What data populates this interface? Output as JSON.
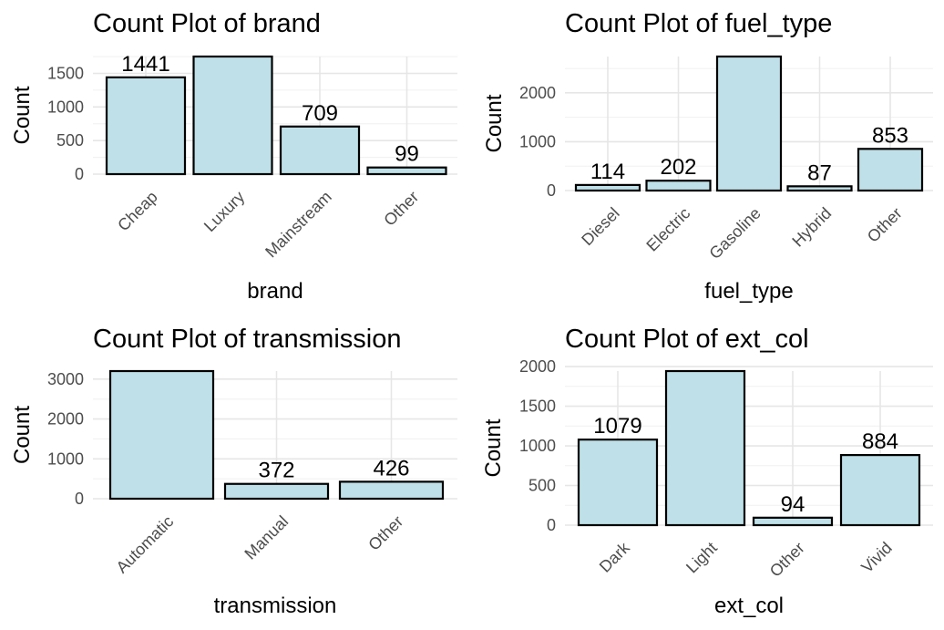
{
  "chart_data": [
    {
      "type": "bar",
      "title": "Count Plot of brand",
      "xlabel": "brand",
      "ylabel": "Count",
      "categories": [
        "Cheap",
        "Luxury",
        "Mainstream",
        "Other"
      ],
      "values": [
        1441,
        1751,
        709,
        99
      ],
      "data_labels": [
        "1441",
        "",
        "709",
        "99"
      ],
      "ylim": [
        0,
        1751
      ],
      "yticks": [
        0,
        500,
        1000,
        1500
      ],
      "ytick_labels": [
        "0",
        "500",
        "1000",
        "1500"
      ],
      "bar_color": "#bfe0e8",
      "grid": true
    },
    {
      "type": "bar",
      "title": "Count Plot of fuel_type",
      "xlabel": "fuel_type",
      "ylabel": "Count",
      "categories": [
        "Diesel",
        "Electric",
        "Gasoline",
        "Hybrid",
        "Other"
      ],
      "values": [
        114,
        202,
        2744,
        87,
        853
      ],
      "data_labels": [
        "114",
        "202",
        "",
        "87",
        "853"
      ],
      "ylim": [
        0,
        2744
      ],
      "yticks": [
        0,
        1000,
        2000
      ],
      "ytick_labels": [
        "0",
        "1000",
        "2000"
      ],
      "bar_color": "#bfe0e8",
      "grid": true
    },
    {
      "type": "bar",
      "title": "Count Plot of transmission",
      "xlabel": "transmission",
      "ylabel": "Count",
      "categories": [
        "Automatic",
        "Manual",
        "Other"
      ],
      "values": [
        3202,
        372,
        426
      ],
      "data_labels": [
        "",
        "372",
        "426"
      ],
      "ylim": [
        0,
        3202
      ],
      "yticks": [
        0,
        1000,
        2000,
        3000
      ],
      "ytick_labels": [
        "0",
        "1000",
        "2000",
        "3000"
      ],
      "bar_color": "#bfe0e8",
      "grid": true
    },
    {
      "type": "bar",
      "title": "Count Plot of ext_col",
      "xlabel": "ext_col",
      "ylabel": "Count",
      "categories": [
        "Dark",
        "Light",
        "Other",
        "Vivid"
      ],
      "values": [
        1079,
        1943,
        94,
        884
      ],
      "data_labels": [
        "1079",
        "",
        "94",
        "884"
      ],
      "ylim": [
        0,
        1943
      ],
      "yticks": [
        0,
        500,
        1000,
        1500,
        2000
      ],
      "ytick_labels": [
        "0",
        "500",
        "1000",
        "1500",
        "2000"
      ],
      "bar_color": "#bfe0e8",
      "grid": true
    }
  ]
}
